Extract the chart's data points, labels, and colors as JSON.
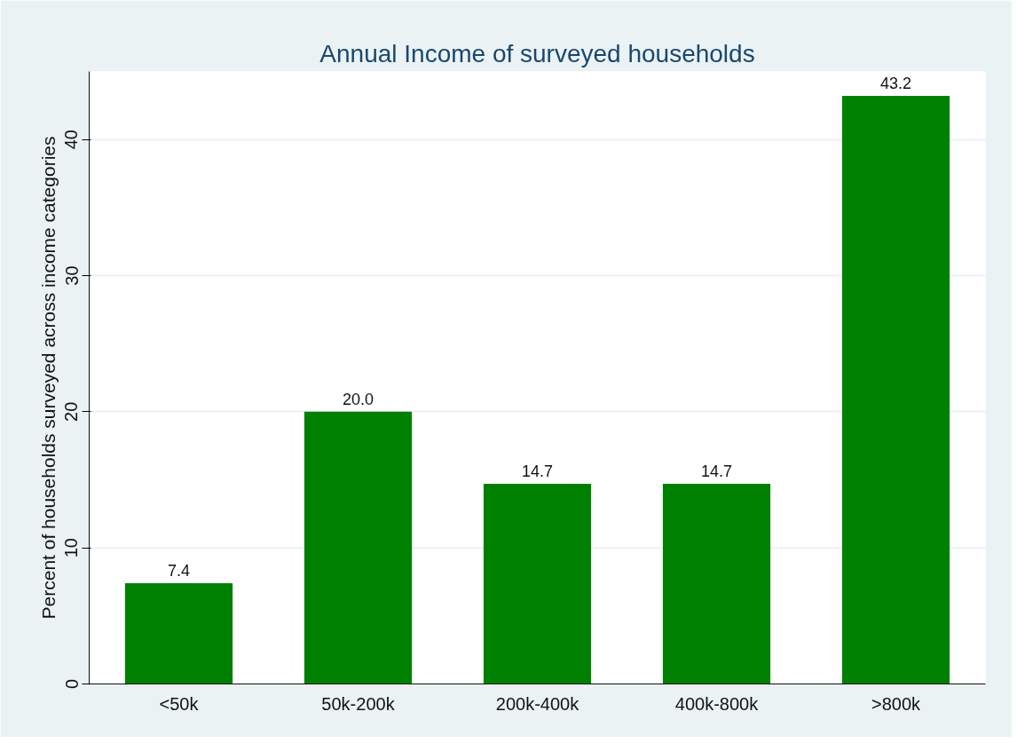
{
  "chart_data": {
    "type": "bar",
    "title": "Annual Income of surveyed households",
    "ylabel": "Percent of households surveyed across income categories",
    "categories": [
      "<50k",
      "50k-200k",
      "200k-400k",
      "400k-800k",
      ">800k"
    ],
    "values": [
      7.4,
      20.0,
      14.7,
      14.7,
      43.2
    ],
    "value_labels": [
      "7.4",
      "20.0",
      "14.7",
      "14.7",
      "43.2"
    ],
    "color": "#008000",
    "ylim": [
      0,
      45
    ],
    "yticks": [
      0,
      10,
      20,
      30,
      40
    ],
    "grid": "y"
  }
}
